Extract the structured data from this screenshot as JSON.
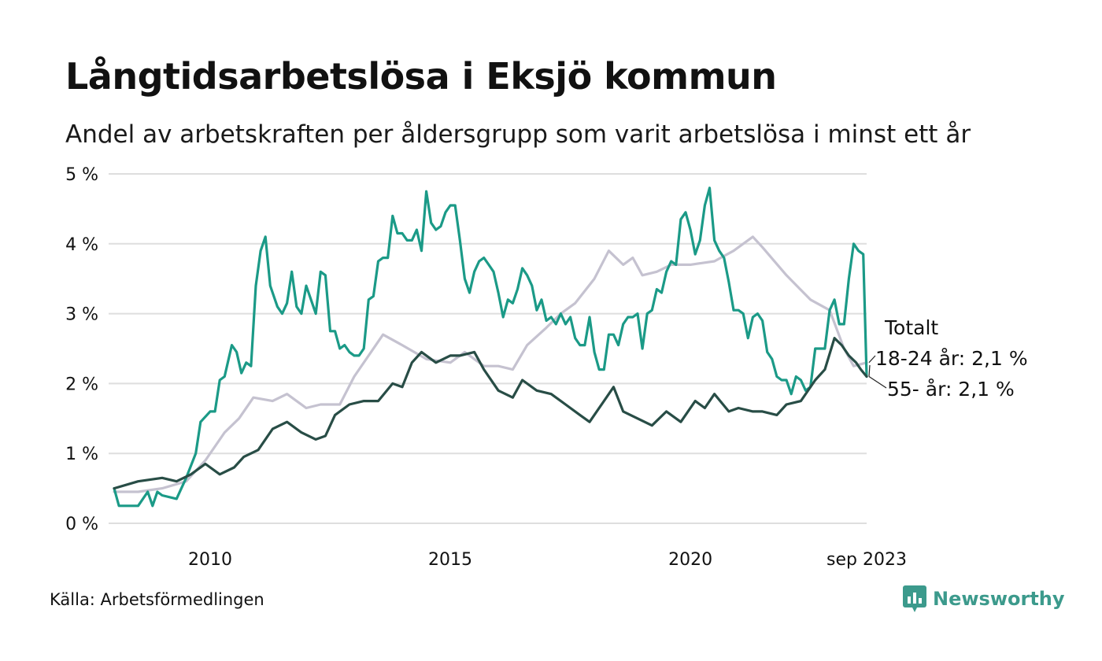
{
  "title": "Långtidsarbetslösa i Eksjö kommun",
  "subtitle": "Andel av arbetskraften per åldersgrupp som varit arbetslösa i minst ett år",
  "source": "Källa: Arbetsförmedlingen",
  "brand": "Newsworthy",
  "colors": {
    "total": "#c5c2d0",
    "age_18_24": "#1b9a87",
    "age_55": "#284d46",
    "grid": "#dedede",
    "brand": "#3c9a8c"
  },
  "chart_data": {
    "type": "line",
    "title": "Långtidsarbetslösa i Eksjö kommun",
    "xlabel": "",
    "ylabel": "",
    "xlim": [
      2008.0,
      2023.67
    ],
    "ylim": [
      0,
      5
    ],
    "y_ticks": [
      0,
      1,
      2,
      3,
      4,
      5
    ],
    "y_tick_labels": [
      "0 %",
      "1 %",
      "2 %",
      "3 %",
      "4 %",
      "5 %"
    ],
    "x_ticks": [
      2010,
      2015,
      2020,
      2023.67
    ],
    "x_tick_labels": [
      "2010",
      "2015",
      "2020",
      "sep 2023"
    ],
    "grid": true,
    "series": [
      {
        "name": "Totalt",
        "label": "Totalt",
        "color_key": "total",
        "points": [
          [
            2008.0,
            0.45
          ],
          [
            2008.5,
            0.45
          ],
          [
            2009.0,
            0.5
          ],
          [
            2009.5,
            0.6
          ],
          [
            2009.9,
            0.9
          ],
          [
            2010.3,
            1.3
          ],
          [
            2010.6,
            1.5
          ],
          [
            2010.9,
            1.8
          ],
          [
            2011.3,
            1.75
          ],
          [
            2011.6,
            1.85
          ],
          [
            2012.0,
            1.65
          ],
          [
            2012.3,
            1.7
          ],
          [
            2012.7,
            1.7
          ],
          [
            2013.0,
            2.1
          ],
          [
            2013.3,
            2.4
          ],
          [
            2013.6,
            2.7
          ],
          [
            2014.0,
            2.55
          ],
          [
            2014.5,
            2.35
          ],
          [
            2015.0,
            2.3
          ],
          [
            2015.3,
            2.45
          ],
          [
            2015.7,
            2.25
          ],
          [
            2016.0,
            2.25
          ],
          [
            2016.3,
            2.2
          ],
          [
            2016.6,
            2.55
          ],
          [
            2017.0,
            2.8
          ],
          [
            2017.3,
            3.0
          ],
          [
            2017.6,
            3.15
          ],
          [
            2018.0,
            3.5
          ],
          [
            2018.3,
            3.9
          ],
          [
            2018.6,
            3.7
          ],
          [
            2018.8,
            3.8
          ],
          [
            2019.0,
            3.55
          ],
          [
            2019.3,
            3.6
          ],
          [
            2019.6,
            3.7
          ],
          [
            2020.0,
            3.7
          ],
          [
            2020.5,
            3.75
          ],
          [
            2020.9,
            3.9
          ],
          [
            2021.3,
            4.1
          ],
          [
            2021.5,
            3.95
          ],
          [
            2022.0,
            3.55
          ],
          [
            2022.5,
            3.2
          ],
          [
            2022.9,
            3.05
          ],
          [
            2023.2,
            2.5
          ],
          [
            2023.4,
            2.25
          ],
          [
            2023.67,
            2.3
          ]
        ]
      },
      {
        "name": "18-24 år",
        "label": "18-24 år: 2,1 %",
        "color_key": "age_18_24",
        "points": [
          [
            2008.0,
            0.5
          ],
          [
            2008.1,
            0.25
          ],
          [
            2008.5,
            0.25
          ],
          [
            2008.7,
            0.45
          ],
          [
            2008.8,
            0.25
          ],
          [
            2008.9,
            0.45
          ],
          [
            2009.0,
            0.4
          ],
          [
            2009.3,
            0.35
          ],
          [
            2009.5,
            0.65
          ],
          [
            2009.7,
            1.0
          ],
          [
            2009.8,
            1.45
          ],
          [
            2010.0,
            1.6
          ],
          [
            2010.1,
            1.6
          ],
          [
            2010.2,
            2.05
          ],
          [
            2010.3,
            2.1
          ],
          [
            2010.45,
            2.55
          ],
          [
            2010.55,
            2.45
          ],
          [
            2010.65,
            2.15
          ],
          [
            2010.75,
            2.3
          ],
          [
            2010.85,
            2.25
          ],
          [
            2010.95,
            3.4
          ],
          [
            2011.05,
            3.9
          ],
          [
            2011.15,
            4.1
          ],
          [
            2011.25,
            3.4
          ],
          [
            2011.4,
            3.1
          ],
          [
            2011.5,
            3.0
          ],
          [
            2011.6,
            3.15
          ],
          [
            2011.7,
            3.6
          ],
          [
            2011.8,
            3.1
          ],
          [
            2011.9,
            3.0
          ],
          [
            2012.0,
            3.4
          ],
          [
            2012.1,
            3.2
          ],
          [
            2012.2,
            3.0
          ],
          [
            2012.3,
            3.6
          ],
          [
            2012.4,
            3.55
          ],
          [
            2012.5,
            2.75
          ],
          [
            2012.6,
            2.75
          ],
          [
            2012.7,
            2.5
          ],
          [
            2012.8,
            2.55
          ],
          [
            2012.9,
            2.45
          ],
          [
            2013.0,
            2.4
          ],
          [
            2013.1,
            2.4
          ],
          [
            2013.2,
            2.5
          ],
          [
            2013.3,
            3.2
          ],
          [
            2013.4,
            3.25
          ],
          [
            2013.5,
            3.75
          ],
          [
            2013.6,
            3.8
          ],
          [
            2013.7,
            3.8
          ],
          [
            2013.8,
            4.4
          ],
          [
            2013.9,
            4.15
          ],
          [
            2014.0,
            4.15
          ],
          [
            2014.1,
            4.05
          ],
          [
            2014.2,
            4.05
          ],
          [
            2014.3,
            4.2
          ],
          [
            2014.4,
            3.9
          ],
          [
            2014.5,
            4.75
          ],
          [
            2014.6,
            4.3
          ],
          [
            2014.7,
            4.2
          ],
          [
            2014.8,
            4.25
          ],
          [
            2014.9,
            4.45
          ],
          [
            2015.0,
            4.55
          ],
          [
            2015.1,
            4.55
          ],
          [
            2015.2,
            4.05
          ],
          [
            2015.3,
            3.5
          ],
          [
            2015.4,
            3.3
          ],
          [
            2015.5,
            3.6
          ],
          [
            2015.6,
            3.75
          ],
          [
            2015.7,
            3.8
          ],
          [
            2015.8,
            3.7
          ],
          [
            2015.9,
            3.6
          ],
          [
            2016.0,
            3.3
          ],
          [
            2016.1,
            2.95
          ],
          [
            2016.2,
            3.2
          ],
          [
            2016.3,
            3.15
          ],
          [
            2016.4,
            3.35
          ],
          [
            2016.5,
            3.65
          ],
          [
            2016.6,
            3.55
          ],
          [
            2016.7,
            3.4
          ],
          [
            2016.8,
            3.05
          ],
          [
            2016.9,
            3.2
          ],
          [
            2017.0,
            2.9
          ],
          [
            2017.1,
            2.95
          ],
          [
            2017.2,
            2.85
          ],
          [
            2017.3,
            3.0
          ],
          [
            2017.4,
            2.85
          ],
          [
            2017.5,
            2.95
          ],
          [
            2017.6,
            2.65
          ],
          [
            2017.7,
            2.55
          ],
          [
            2017.8,
            2.55
          ],
          [
            2017.9,
            2.95
          ],
          [
            2018.0,
            2.45
          ],
          [
            2018.1,
            2.2
          ],
          [
            2018.2,
            2.2
          ],
          [
            2018.3,
            2.7
          ],
          [
            2018.4,
            2.7
          ],
          [
            2018.5,
            2.55
          ],
          [
            2018.6,
            2.85
          ],
          [
            2018.7,
            2.95
          ],
          [
            2018.8,
            2.95
          ],
          [
            2018.9,
            3.0
          ],
          [
            2019.0,
            2.5
          ],
          [
            2019.1,
            3.0
          ],
          [
            2019.2,
            3.05
          ],
          [
            2019.3,
            3.35
          ],
          [
            2019.4,
            3.3
          ],
          [
            2019.5,
            3.6
          ],
          [
            2019.6,
            3.75
          ],
          [
            2019.7,
            3.7
          ],
          [
            2019.8,
            4.35
          ],
          [
            2019.9,
            4.45
          ],
          [
            2020.0,
            4.2
          ],
          [
            2020.1,
            3.85
          ],
          [
            2020.2,
            4.05
          ],
          [
            2020.3,
            4.55
          ],
          [
            2020.4,
            4.8
          ],
          [
            2020.5,
            4.05
          ],
          [
            2020.6,
            3.9
          ],
          [
            2020.7,
            3.8
          ],
          [
            2020.8,
            3.45
          ],
          [
            2020.9,
            3.05
          ],
          [
            2021.0,
            3.05
          ],
          [
            2021.1,
            3.0
          ],
          [
            2021.2,
            2.65
          ],
          [
            2021.3,
            2.95
          ],
          [
            2021.4,
            3.0
          ],
          [
            2021.5,
            2.9
          ],
          [
            2021.6,
            2.45
          ],
          [
            2021.7,
            2.35
          ],
          [
            2021.8,
            2.1
          ],
          [
            2021.9,
            2.05
          ],
          [
            2022.0,
            2.05
          ],
          [
            2022.1,
            1.85
          ],
          [
            2022.2,
            2.1
          ],
          [
            2022.3,
            2.05
          ],
          [
            2022.4,
            1.9
          ],
          [
            2022.5,
            1.95
          ],
          [
            2022.6,
            2.5
          ],
          [
            2022.7,
            2.5
          ],
          [
            2022.8,
            2.5
          ],
          [
            2022.9,
            3.05
          ],
          [
            2023.0,
            3.2
          ],
          [
            2023.1,
            2.85
          ],
          [
            2023.2,
            2.85
          ],
          [
            2023.3,
            3.5
          ],
          [
            2023.4,
            4.0
          ],
          [
            2023.5,
            3.9
          ],
          [
            2023.6,
            3.85
          ],
          [
            2023.67,
            2.1
          ]
        ]
      },
      {
        "name": "55- år",
        "label": "55- år: 2,1 %",
        "color_key": "age_55",
        "points": [
          [
            2008.0,
            0.5
          ],
          [
            2008.5,
            0.6
          ],
          [
            2009.0,
            0.65
          ],
          [
            2009.3,
            0.6
          ],
          [
            2009.6,
            0.7
          ],
          [
            2009.9,
            0.85
          ],
          [
            2010.2,
            0.7
          ],
          [
            2010.5,
            0.8
          ],
          [
            2010.7,
            0.95
          ],
          [
            2011.0,
            1.05
          ],
          [
            2011.3,
            1.35
          ],
          [
            2011.6,
            1.45
          ],
          [
            2011.9,
            1.3
          ],
          [
            2012.2,
            1.2
          ],
          [
            2012.4,
            1.25
          ],
          [
            2012.6,
            1.55
          ],
          [
            2012.9,
            1.7
          ],
          [
            2013.2,
            1.75
          ],
          [
            2013.5,
            1.75
          ],
          [
            2013.8,
            2.0
          ],
          [
            2014.0,
            1.95
          ],
          [
            2014.2,
            2.3
          ],
          [
            2014.4,
            2.45
          ],
          [
            2014.7,
            2.3
          ],
          [
            2015.0,
            2.4
          ],
          [
            2015.2,
            2.4
          ],
          [
            2015.5,
            2.45
          ],
          [
            2015.7,
            2.2
          ],
          [
            2016.0,
            1.9
          ],
          [
            2016.3,
            1.8
          ],
          [
            2016.5,
            2.05
          ],
          [
            2016.8,
            1.9
          ],
          [
            2017.1,
            1.85
          ],
          [
            2017.4,
            1.7
          ],
          [
            2017.7,
            1.55
          ],
          [
            2017.9,
            1.45
          ],
          [
            2018.2,
            1.75
          ],
          [
            2018.4,
            1.95
          ],
          [
            2018.6,
            1.6
          ],
          [
            2018.9,
            1.5
          ],
          [
            2019.2,
            1.4
          ],
          [
            2019.5,
            1.6
          ],
          [
            2019.8,
            1.45
          ],
          [
            2020.1,
            1.75
          ],
          [
            2020.3,
            1.65
          ],
          [
            2020.5,
            1.85
          ],
          [
            2020.8,
            1.6
          ],
          [
            2021.0,
            1.65
          ],
          [
            2021.3,
            1.6
          ],
          [
            2021.5,
            1.6
          ],
          [
            2021.8,
            1.55
          ],
          [
            2022.0,
            1.7
          ],
          [
            2022.3,
            1.75
          ],
          [
            2022.6,
            2.05
          ],
          [
            2022.8,
            2.2
          ],
          [
            2023.0,
            2.65
          ],
          [
            2023.15,
            2.55
          ],
          [
            2023.3,
            2.4
          ],
          [
            2023.45,
            2.3
          ],
          [
            2023.55,
            2.2
          ],
          [
            2023.67,
            2.1
          ]
        ]
      }
    ]
  }
}
